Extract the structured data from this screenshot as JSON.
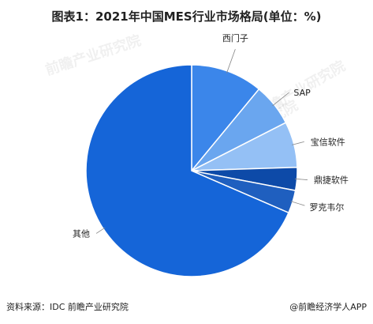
{
  "title": "图表1：2021年中国MES行业市场格局(单位：%)",
  "source": "资料来源：IDC 前瞻产业研究院",
  "brand": "@前瞻经济学人APP",
  "watermark": {
    "text": "前瞻产业研究院",
    "sub": "中国产业咨询领导者"
  },
  "colors": {
    "dark_blue": "#1f5fbf",
    "main_blue": "#1565d8",
    "mid_blue": "#3b86ea",
    "light_blue": "#6aa6ef",
    "pale_blue": "#94c0f5",
    "navy": "#0d4aa8"
  },
  "chart_data": {
    "type": "pie",
    "title": "图表1：2021年中国MES行业市场格局(单位：%)",
    "labels": [
      "西门子",
      "SAP",
      "宝信软件",
      "鼎捷软件",
      "罗克韦尔",
      "其他"
    ],
    "values": [
      11,
      6.5,
      7,
      3.5,
      3.5,
      68.5
    ],
    "colors": [
      "#3b86ea",
      "#6aa6ef",
      "#94c0f5",
      "#0d4aa8",
      "#1f5fbf",
      "#1565d8"
    ],
    "start_angle_deg": 0,
    "direction": "clockwise",
    "legend": "none"
  }
}
